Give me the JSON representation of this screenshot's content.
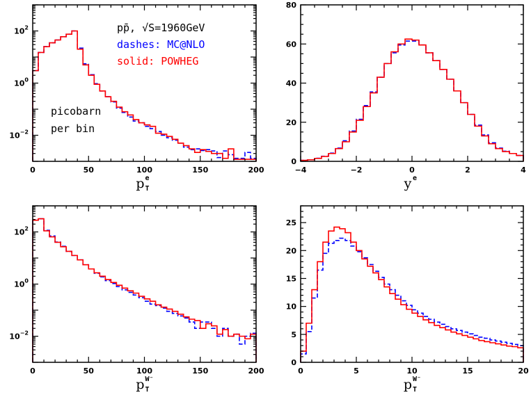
{
  "colors": {
    "mcatnlo": "#0000ff",
    "powheg": "#ff0000",
    "frame": "#000000"
  },
  "chart_data": [
    {
      "type": "line",
      "histogram": true,
      "xlabel": {
        "base": "p",
        "sub": "T",
        "sup": "e"
      },
      "xlim": [
        0,
        200
      ],
      "ylim": [
        0.001,
        1000
      ],
      "yscale": "log",
      "bin_width": 5,
      "xticks": [
        "0",
        "50",
        "100",
        "150",
        "200"
      ],
      "xtick_values": [
        0,
        50,
        100,
        150,
        200
      ],
      "yticks": [
        {
          "value": 100,
          "base": "10",
          "exp": "2"
        },
        {
          "value": 1,
          "base": "10",
          "exp": "0"
        },
        {
          "value": 0.01,
          "base": "10",
          "exp": "−2"
        }
      ],
      "annotations": {
        "header": "pp̄, √S=1960GeV",
        "dashes": "dashes: MC@NLO",
        "solid": "solid: POWHEG",
        "unit_line1": "picobarn",
        "unit_line2": "per bin"
      },
      "series": [
        {
          "name": "POWHEG",
          "style": "solid",
          "color": "#ff0000",
          "values": [
            3,
            15,
            25,
            35,
            45,
            60,
            75,
            100,
            20,
            5,
            2,
            0.9,
            0.5,
            0.3,
            0.2,
            0.12,
            0.08,
            0.06,
            0.04,
            0.03,
            0.025,
            0.022,
            0.012,
            0.011,
            0.009,
            0.007,
            0.005,
            0.004,
            0.003,
            0.0022,
            0.0028,
            0.0024,
            0.002,
            0.002,
            0.0013,
            0.003,
            0.0012,
            0.0012,
            0.0012,
            0.0012
          ]
        },
        {
          "name": "MC@NLO",
          "style": "dashed",
          "color": "#0000ff",
          "values": [
            3,
            15,
            25,
            35,
            45,
            60,
            75,
            100,
            22,
            5.5,
            2.1,
            0.95,
            0.5,
            0.3,
            0.19,
            0.11,
            0.075,
            0.05,
            0.035,
            0.03,
            0.022,
            0.018,
            0.014,
            0.01,
            0.008,
            0.0065,
            0.005,
            0.0035,
            0.0028,
            0.003,
            0.0026,
            0.0028,
            0.0025,
            0.0014,
            0.0025,
            0.0018,
            0.0013,
            0.0013,
            0.0022,
            0.0013
          ]
        }
      ]
    },
    {
      "type": "line",
      "histogram": true,
      "xlabel": {
        "base": "y",
        "sub": "",
        "sup": "e"
      },
      "xlim": [
        -4,
        4
      ],
      "ylim": [
        0,
        80
      ],
      "yscale": "linear",
      "bin_width": 0.25,
      "xticks": [
        "−4",
        "−2",
        "0",
        "2",
        "4"
      ],
      "xtick_values": [
        -4,
        -2,
        0,
        2,
        4
      ],
      "yticks": [
        {
          "value": 0,
          "base": "0",
          "exp": ""
        },
        {
          "value": 20,
          "base": "20",
          "exp": ""
        },
        {
          "value": 40,
          "base": "40",
          "exp": ""
        },
        {
          "value": 60,
          "base": "60",
          "exp": ""
        },
        {
          "value": 80,
          "base": "80",
          "exp": ""
        }
      ],
      "series": [
        {
          "name": "POWHEG",
          "style": "solid",
          "color": "#ff0000",
          "values": [
            0.5,
            0.8,
            1.5,
            2.5,
            4,
            6.5,
            10,
            15,
            21,
            28,
            35,
            43,
            50,
            56,
            60,
            62.5,
            62,
            59.5,
            55.5,
            51.5,
            47,
            42,
            36,
            30,
            24,
            18,
            13,
            9,
            6.5,
            5,
            4,
            3
          ]
        },
        {
          "name": "MC@NLO",
          "style": "dashed",
          "color": "#0000ff",
          "values": [
            0.5,
            0.8,
            1.6,
            2.6,
            4.2,
            6.8,
            10.5,
            15.5,
            21.5,
            28.5,
            35.5,
            43,
            50,
            55.5,
            59.5,
            61.5,
            61.5,
            59.5,
            55.5,
            51.5,
            47,
            42,
            36,
            30,
            24,
            18.5,
            13.5,
            9.5,
            6.8,
            5.2,
            4,
            3
          ]
        }
      ]
    },
    {
      "type": "line",
      "histogram": true,
      "xlabel": {
        "base": "p",
        "sub": "T",
        "sup": "W⁻"
      },
      "xlim": [
        0,
        200
      ],
      "ylim": [
        0.001,
        1000
      ],
      "yscale": "log",
      "bin_width": 5,
      "xticks": [
        "0",
        "50",
        "100",
        "150",
        "200"
      ],
      "xtick_values": [
        0,
        50,
        100,
        150,
        200
      ],
      "yticks": [
        {
          "value": 100,
          "base": "10",
          "exp": "2"
        },
        {
          "value": 1,
          "base": "10",
          "exp": "0"
        },
        {
          "value": 0.01,
          "base": "10",
          "exp": "−2"
        }
      ],
      "series": [
        {
          "name": "POWHEG",
          "style": "solid",
          "color": "#ff0000",
          "values": [
            280,
            320,
            110,
            65,
            40,
            27,
            18,
            12.5,
            8.5,
            5.5,
            3.8,
            2.7,
            2.0,
            1.5,
            1.15,
            0.9,
            0.7,
            0.55,
            0.45,
            0.34,
            0.27,
            0.22,
            0.16,
            0.13,
            0.11,
            0.09,
            0.07,
            0.055,
            0.045,
            0.04,
            0.02,
            0.03,
            0.025,
            0.012,
            0.018,
            0.01,
            0.012,
            0.01,
            0.008,
            0.012
          ]
        },
        {
          "name": "MC@NLO",
          "style": "dashed",
          "color": "#0000ff",
          "values": [
            280,
            320,
            115,
            70,
            41,
            28,
            18,
            12.5,
            8.5,
            5.5,
            3.8,
            2.6,
            1.9,
            1.35,
            1.05,
            0.8,
            0.6,
            0.48,
            0.38,
            0.3,
            0.22,
            0.17,
            0.15,
            0.12,
            0.09,
            0.075,
            0.06,
            0.05,
            0.035,
            0.02,
            0.035,
            0.035,
            0.02,
            0.01,
            0.02,
            0.01,
            0.012,
            0.005,
            0.01,
            0.013
          ]
        }
      ]
    },
    {
      "type": "line",
      "histogram": true,
      "xlabel": {
        "base": "p",
        "sub": "T",
        "sup": "W⁻"
      },
      "xlim": [
        0,
        20
      ],
      "ylim": [
        0,
        28
      ],
      "yscale": "linear",
      "bin_width": 0.5,
      "xticks": [
        "0",
        "5",
        "10",
        "15",
        "20"
      ],
      "xtick_values": [
        0,
        5,
        10,
        15,
        20
      ],
      "yticks": [
        {
          "value": 0,
          "base": "0",
          "exp": ""
        },
        {
          "value": 5,
          "base": "5",
          "exp": ""
        },
        {
          "value": 10,
          "base": "10",
          "exp": ""
        },
        {
          "value": 15,
          "base": "15",
          "exp": ""
        },
        {
          "value": 20,
          "base": "20",
          "exp": ""
        },
        {
          "value": 25,
          "base": "25",
          "exp": ""
        }
      ],
      "series": [
        {
          "name": "POWHEG",
          "style": "solid",
          "color": "#ff0000",
          "values": [
            2,
            7,
            13,
            18,
            21.5,
            23.5,
            24.2,
            23.9,
            23.2,
            21.5,
            20,
            18.5,
            17.2,
            16,
            14.8,
            13.5,
            12.3,
            11.3,
            10.3,
            9.5,
            8.8,
            8.2,
            7.6,
            7.1,
            6.6,
            6.2,
            5.8,
            5.4,
            5.1,
            4.8,
            4.5,
            4.2,
            3.9,
            3.7,
            3.5,
            3.3,
            3.1,
            2.9,
            2.8,
            2.6
          ]
        },
        {
          "name": "MC@NLO",
          "style": "dashed",
          "color": "#0000ff",
          "values": [
            1.5,
            5.5,
            11.5,
            16.5,
            19.5,
            21.3,
            21.8,
            22.2,
            21.8,
            20.8,
            19.8,
            18.7,
            17.5,
            16.3,
            15.2,
            14,
            13,
            12,
            11,
            10.2,
            9.4,
            8.8,
            8.2,
            7.7,
            7.2,
            6.8,
            6.4,
            6,
            5.7,
            5.4,
            5.1,
            4.8,
            4.5,
            4.3,
            4.0,
            3.8,
            3.6,
            3.4,
            3.2,
            3.0
          ]
        }
      ]
    }
  ]
}
